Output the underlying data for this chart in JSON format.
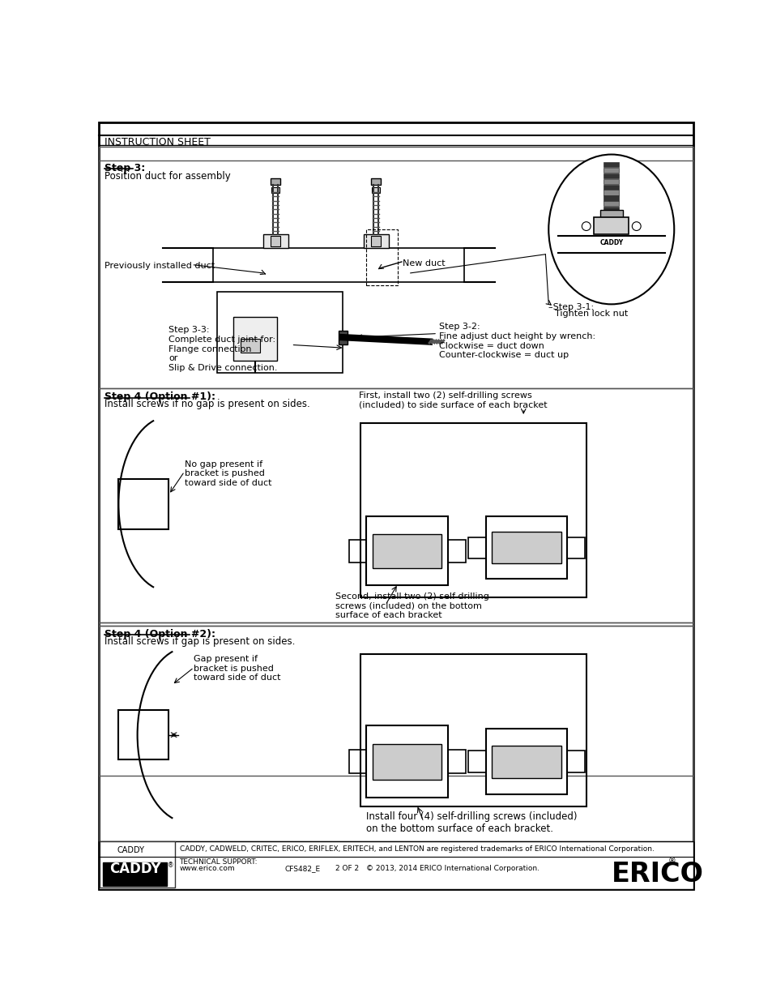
{
  "bg_color": "#ffffff",
  "page_title": "INSTRUCTION SHEET",
  "sec1_title": "Step 3:",
  "sec1_sub": "Position duct for assembly",
  "label_prev_duct": "Previously installed duct",
  "label_new_duct": "New duct",
  "step31": "Step 3-1:\nTighten lock nut",
  "step32": "Step 3-2:\nFine adjust duct height by wrench:\nClockwise = duct down\nCounter-clockwise = duct up",
  "step33": "Step 3-3:\nComplete duct joint for:\nFlange connection\nor\nSlip & Drive connection.",
  "sec2_title": "Step 4 (Option #1):",
  "sec2_sub": "Install screws if no gap is present on sides.",
  "sec2_nogap": "No gap present if\nbracket is pushed\ntoward side of duct",
  "sec2_first": "First, install two (2) self-drilling screws\n(included) to side surface of each bracket",
  "sec2_second": "Second, install two (2) self-drilling\nscrews (included) on the bottom\nsurface of each bracket",
  "sec3_title": "Step 4 (Option #2):",
  "sec3_sub": "Install screws if gap is present on sides.",
  "sec3_gap": "Gap present if\nbracket is pushed\ntoward side of duct",
  "sec3_install": "Install four (4) self-drilling screws (included)\non the bottom surface of each bracket.",
  "footer_tm": "CADDY, CADWELD, CRITEC, ERICO, ERIFLEX, ERITECH, and LENTON are registered trademarks of ERICO International Corporation.",
  "footer_support": "TECHNICAL SUPPORT:",
  "footer_url": "www.erico.com",
  "footer_doc": "CFS482_E",
  "footer_page": "2 OF 2",
  "footer_copy": "© 2013, 2014 ERICO International Corporation."
}
